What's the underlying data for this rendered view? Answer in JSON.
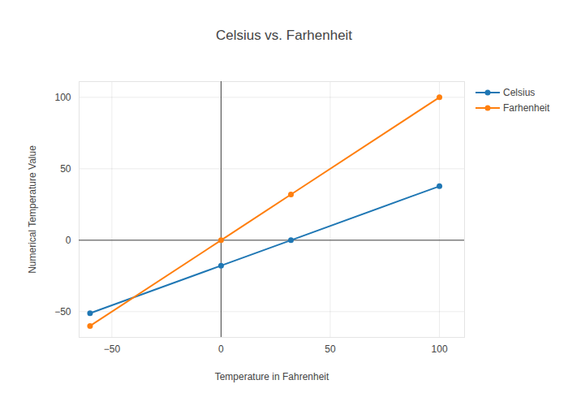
{
  "chart_data": {
    "type": "line",
    "title": "Celsius vs. Farhenheit",
    "x_label": "Temperature in Fahrenheit",
    "y_label": "Numerical Temperature Value",
    "x": [
      -60,
      0,
      32,
      100
    ],
    "series": [
      {
        "name": "Celsius",
        "color": "#1f77b4",
        "values": [
          -51.1,
          -17.8,
          0,
          37.8
        ],
        "marker": "circle"
      },
      {
        "name": "Farhenheit",
        "color": "#ff7f0e",
        "values": [
          -60,
          0,
          32,
          100
        ],
        "marker": "circle"
      }
    ],
    "xlim": [
      -65,
      111.5
    ],
    "xticks": [
      -50,
      0,
      50,
      100
    ],
    "ylim": [
      -68,
      111
    ],
    "yticks": [
      -50,
      0,
      50,
      100
    ],
    "grid": true,
    "legend": "right"
  }
}
